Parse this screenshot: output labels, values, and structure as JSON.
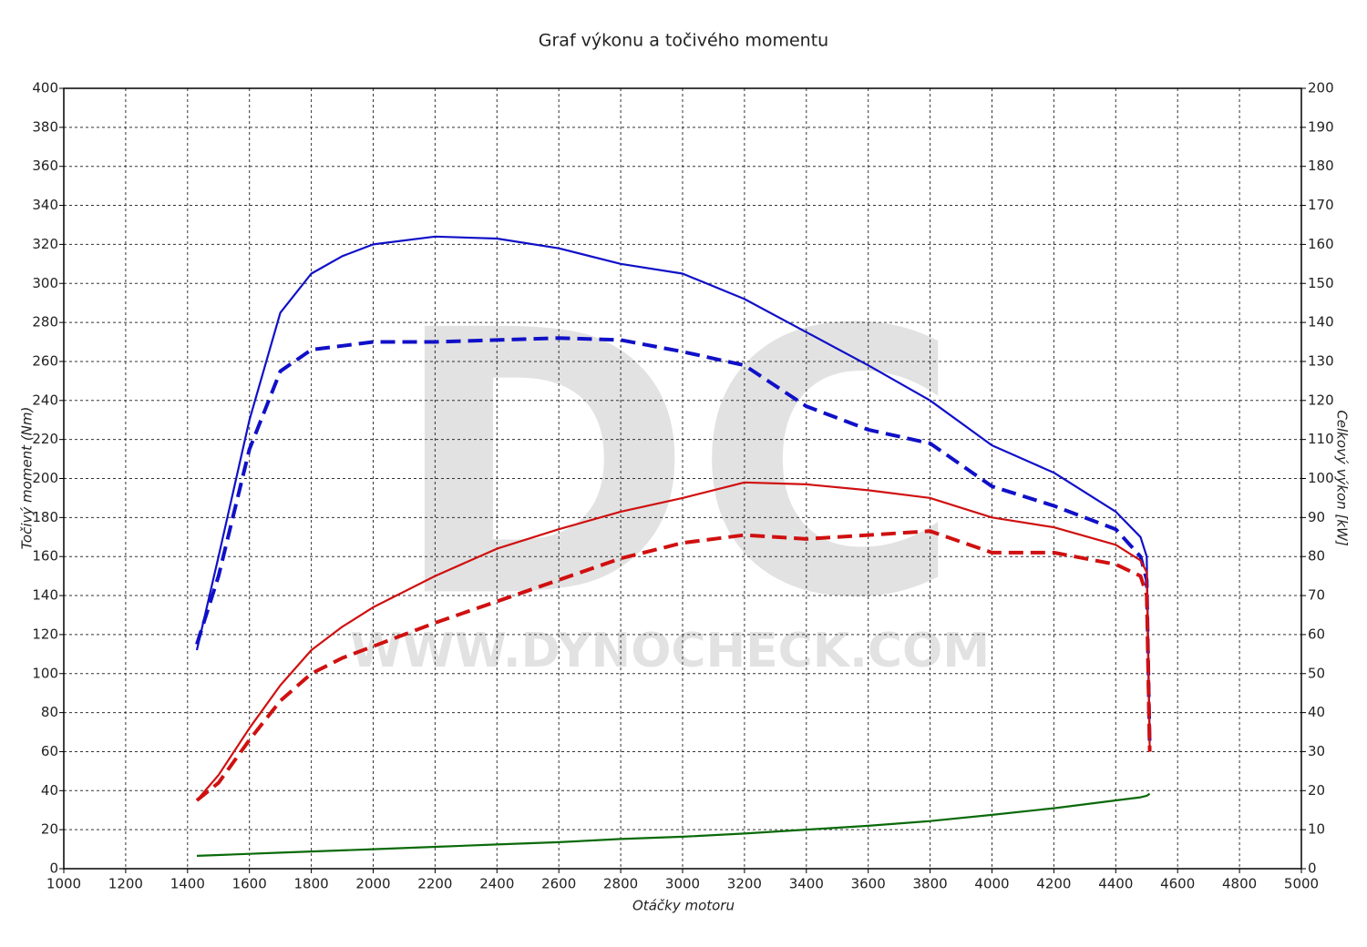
{
  "chart_data": {
    "type": "line",
    "title": "Graf výkonu a točivého momentu",
    "xlabel": "Otáčky motoru",
    "ylabel": "Točivý moment (Nm)",
    "y2label": "Celkový výkon [kW]",
    "watermark": "DC",
    "watermark_url": "WWW.DYNOCHECK.COM",
    "x": [
      1430,
      1500,
      1600,
      1700,
      1800,
      1900,
      2000,
      2200,
      2400,
      2600,
      2800,
      3000,
      3200,
      3400,
      3600,
      3800,
      4000,
      4200,
      4400,
      4480,
      4500,
      4510
    ],
    "series": [
      {
        "color": "#1010c8",
        "style": "solid",
        "values": [
          112,
          160,
          230,
          285,
          305,
          314,
          320,
          324,
          323,
          318,
          310,
          305,
          292,
          275,
          258,
          240,
          217,
          203,
          183,
          170,
          160,
          65
        ]
      },
      {
        "color": "#1010c8",
        "style": "dashed",
        "values": [
          115,
          150,
          215,
          255,
          266,
          268,
          270,
          270,
          271,
          272,
          271,
          265,
          258,
          237,
          225,
          218,
          196,
          186,
          174,
          160,
          148,
          62
        ]
      },
      {
        "color": "#d01010",
        "style": "solid",
        "axis": "y2",
        "values": [
          17.5,
          24,
          36,
          47,
          56,
          62,
          67,
          75,
          82,
          87,
          91.5,
          95,
          99,
          98.5,
          97,
          95,
          90,
          87.5,
          83,
          79,
          76,
          30
        ]
      },
      {
        "color": "#d01010",
        "style": "dashed",
        "axis": "y2",
        "values": [
          17.5,
          22,
          33,
          43,
          50,
          54,
          57,
          63,
          68.5,
          74,
          79.5,
          83.5,
          85.5,
          84.5,
          85.5,
          86.5,
          81,
          81,
          78,
          75,
          70,
          30
        ]
      },
      {
        "color": "#0a6a0a",
        "style": "solid",
        "axis": "y2",
        "values": [
          3.3,
          3.5,
          3.8,
          4.1,
          4.4,
          4.7,
          5,
          5.6,
          6.2,
          6.8,
          7.6,
          8.2,
          9,
          10,
          11,
          12.2,
          13.8,
          15.5,
          17.5,
          18.3,
          18.7,
          19.2
        ]
      }
    ],
    "xlim": [
      1000,
      5000
    ],
    "xticks": [
      1000,
      1200,
      1400,
      1600,
      1800,
      2000,
      2200,
      2400,
      2600,
      2800,
      3000,
      3200,
      3400,
      3600,
      3800,
      4000,
      4200,
      4400,
      4600,
      4800,
      5000
    ],
    "ylim": [
      0,
      400
    ],
    "yticks": [
      0,
      20,
      40,
      60,
      80,
      100,
      120,
      140,
      160,
      180,
      200,
      220,
      240,
      260,
      280,
      300,
      320,
      340,
      360,
      380,
      400
    ],
    "y2lim": [
      0,
      200
    ],
    "y2ticks": [
      0,
      10,
      20,
      30,
      40,
      50,
      60,
      70,
      80,
      90,
      100,
      110,
      120,
      130,
      140,
      150,
      160,
      170,
      180,
      190,
      200
    ],
    "grid": true
  }
}
